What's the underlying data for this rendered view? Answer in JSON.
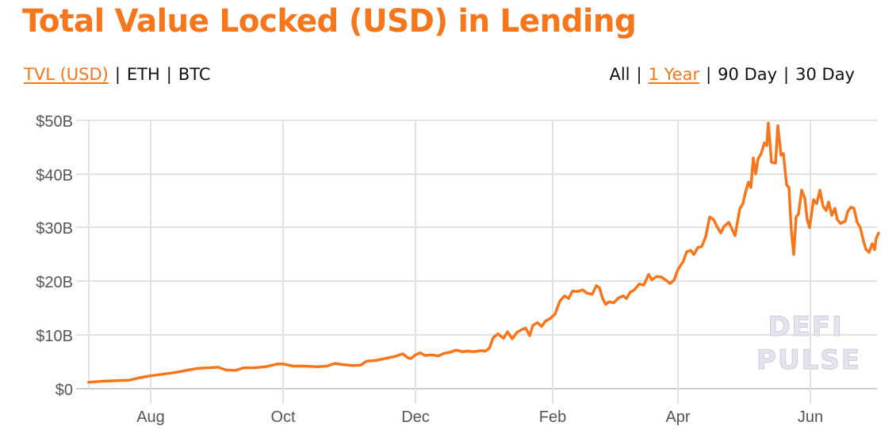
{
  "title": "Total Value Locked (USD) in Lending",
  "metric_tabs": [
    {
      "label": "TVL (USD)",
      "active": true
    },
    {
      "label": "ETH",
      "active": false
    },
    {
      "label": "BTC",
      "active": false
    }
  ],
  "range_tabs": [
    {
      "label": "All",
      "active": false
    },
    {
      "label": "1 Year",
      "active": true
    },
    {
      "label": "90 Day",
      "active": false
    },
    {
      "label": "30 Day",
      "active": false
    }
  ],
  "separator": "|",
  "watermark": [
    "DEFI",
    "PULSE"
  ],
  "colors": {
    "accent": "#f7761b",
    "line": "#f7761b",
    "grid": "#dddddd",
    "axis_text": "#555555"
  },
  "chart_data": {
    "type": "line",
    "title": "Total Value Locked (USD) in Lending",
    "xlabel": "",
    "ylabel": "TVL (USD)",
    "ylim": [
      0,
      50
    ],
    "y_unit": "B",
    "y_ticks": [
      "$0",
      "$10B",
      "$20B",
      "$30B",
      "$40B",
      "$50B"
    ],
    "x_ticks": [
      "Aug",
      "Oct",
      "Dec",
      "Feb",
      "Apr",
      "Jun"
    ],
    "grid": true,
    "legend": "none",
    "series": [
      {
        "name": "TVL (USD)",
        "points": [
          [
            112,
            1.2
          ],
          [
            130,
            1.4
          ],
          [
            150,
            1.5
          ],
          [
            163,
            1.6
          ],
          [
            175,
            2.0
          ],
          [
            190,
            2.4
          ],
          [
            205,
            2.7
          ],
          [
            220,
            3.0
          ],
          [
            235,
            3.4
          ],
          [
            250,
            3.8
          ],
          [
            262,
            3.9
          ],
          [
            275,
            4.0
          ],
          [
            285,
            3.5
          ],
          [
            297,
            3.4
          ],
          [
            307,
            3.9
          ],
          [
            320,
            3.9
          ],
          [
            335,
            4.1
          ],
          [
            350,
            4.6
          ],
          [
            357,
            4.6
          ],
          [
            370,
            4.2
          ],
          [
            385,
            4.2
          ],
          [
            400,
            4.1
          ],
          [
            412,
            4.2
          ],
          [
            422,
            4.7
          ],
          [
            432,
            4.5
          ],
          [
            445,
            4.3
          ],
          [
            455,
            4.4
          ],
          [
            462,
            5.1
          ],
          [
            475,
            5.3
          ],
          [
            485,
            5.6
          ],
          [
            498,
            6.0
          ],
          [
            508,
            6.5
          ],
          [
            514,
            5.8
          ],
          [
            518,
            5.6
          ],
          [
            524,
            6.3
          ],
          [
            530,
            6.7
          ],
          [
            536,
            6.2
          ],
          [
            545,
            6.3
          ],
          [
            553,
            6.1
          ],
          [
            560,
            6.6
          ],
          [
            568,
            6.8
          ],
          [
            575,
            7.2
          ],
          [
            583,
            6.9
          ],
          [
            590,
            7.0
          ],
          [
            598,
            6.9
          ],
          [
            606,
            7.1
          ],
          [
            612,
            7.0
          ],
          [
            617,
            7.5
          ],
          [
            622,
            9.5
          ],
          [
            628,
            10.2
          ],
          [
            635,
            9.4
          ],
          [
            640,
            10.6
          ],
          [
            646,
            9.3
          ],
          [
            652,
            10.5
          ],
          [
            658,
            11.0
          ],
          [
            663,
            11.3
          ],
          [
            668,
            9.9
          ],
          [
            672,
            11.8
          ],
          [
            678,
            12.3
          ],
          [
            683,
            11.6
          ],
          [
            688,
            12.6
          ],
          [
            694,
            13.1
          ],
          [
            700,
            13.9
          ],
          [
            706,
            16.3
          ],
          [
            712,
            17.3
          ],
          [
            717,
            16.8
          ],
          [
            722,
            18.2
          ],
          [
            728,
            18.1
          ],
          [
            735,
            18.4
          ],
          [
            740,
            17.8
          ],
          [
            747,
            17.6
          ],
          [
            752,
            19.2
          ],
          [
            756,
            18.8
          ],
          [
            760,
            16.8
          ],
          [
            764,
            15.7
          ],
          [
            768,
            16.2
          ],
          [
            774,
            16.0
          ],
          [
            780,
            16.9
          ],
          [
            786,
            17.3
          ],
          [
            790,
            16.8
          ],
          [
            795,
            18.0
          ],
          [
            800,
            18.4
          ],
          [
            806,
            19.5
          ],
          [
            812,
            19.3
          ],
          [
            818,
            21.3
          ],
          [
            822,
            20.3
          ],
          [
            828,
            20.9
          ],
          [
            834,
            20.8
          ],
          [
            840,
            20.2
          ],
          [
            845,
            19.6
          ],
          [
            850,
            20.2
          ],
          [
            855,
            22.2
          ],
          [
            862,
            23.8
          ],
          [
            866,
            25.5
          ],
          [
            871,
            25.8
          ],
          [
            875,
            25.0
          ],
          [
            880,
            26.3
          ],
          [
            885,
            26.5
          ],
          [
            890,
            28.3
          ],
          [
            895,
            32.0
          ],
          [
            900,
            31.5
          ],
          [
            905,
            30.0
          ],
          [
            909,
            29.0
          ],
          [
            913,
            30.2
          ],
          [
            919,
            31.0
          ],
          [
            923,
            29.8
          ],
          [
            927,
            28.5
          ],
          [
            930,
            31.0
          ],
          [
            933,
            33.5
          ],
          [
            937,
            34.5
          ],
          [
            940,
            36.5
          ],
          [
            944,
            38.5
          ],
          [
            947,
            37.5
          ],
          [
            950,
            43.0
          ],
          [
            953,
            40.0
          ],
          [
            956,
            42.8
          ],
          [
            960,
            43.8
          ],
          [
            964,
            45.8
          ],
          [
            967,
            45.3
          ],
          [
            969,
            49.5
          ],
          [
            973,
            42.2
          ],
          [
            978,
            42.0
          ],
          [
            981,
            49.0
          ],
          [
            985,
            43.5
          ],
          [
            988,
            43.8
          ],
          [
            992,
            38.0
          ],
          [
            995,
            37.5
          ],
          [
            998,
            29.5
          ],
          [
            1001,
            25.0
          ],
          [
            1004,
            32.0
          ],
          [
            1007,
            32.5
          ],
          [
            1011,
            37.0
          ],
          [
            1015,
            35.5
          ],
          [
            1018,
            31.5
          ],
          [
            1021,
            30.0
          ],
          [
            1026,
            35.2
          ],
          [
            1030,
            34.5
          ],
          [
            1034,
            37.0
          ],
          [
            1038,
            34.0
          ],
          [
            1042,
            33.2
          ],
          [
            1045,
            34.8
          ],
          [
            1049,
            32.3
          ],
          [
            1053,
            33.6
          ],
          [
            1056,
            31.5
          ],
          [
            1060,
            30.8
          ],
          [
            1066,
            31.2
          ],
          [
            1069,
            33.0
          ],
          [
            1073,
            33.8
          ],
          [
            1077,
            33.6
          ],
          [
            1081,
            31.0
          ],
          [
            1085,
            30.0
          ],
          [
            1089,
            27.5
          ],
          [
            1092,
            26.0
          ],
          [
            1096,
            25.4
          ],
          [
            1100,
            27.0
          ],
          [
            1103,
            25.9
          ],
          [
            1105,
            28.0
          ],
          [
            1108,
            29.0
          ]
        ]
      }
    ]
  }
}
